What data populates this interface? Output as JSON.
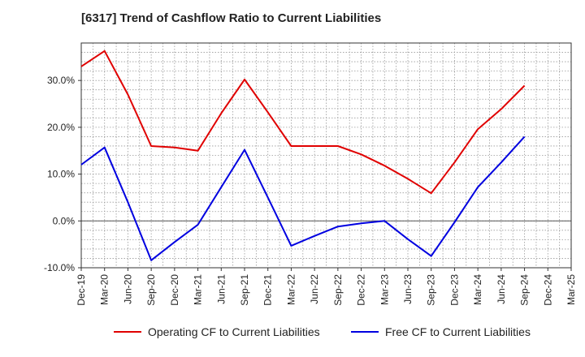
{
  "chart_data": {
    "type": "line",
    "title": "[6317]  Trend of Cashflow Ratio to Current Liabilities",
    "xlabel": "",
    "ylabel": "",
    "categories": [
      "Dec-19",
      "Mar-20",
      "Jun-20",
      "Sep-20",
      "Dec-20",
      "Mar-21",
      "Jun-21",
      "Sep-21",
      "Dec-21",
      "Mar-22",
      "Jun-22",
      "Sep-22",
      "Dec-22",
      "Mar-23",
      "Jun-23",
      "Sep-23",
      "Dec-23",
      "Mar-24",
      "Jun-24",
      "Sep-24",
      "Dec-24",
      "Mar-25"
    ],
    "ylim": [
      -10,
      38
    ],
    "yticks": [
      -10,
      0,
      10,
      20,
      30
    ],
    "ytick_labels": [
      "-10.0%",
      "0.0%",
      "10.0%",
      "20.0%",
      "30.0%"
    ],
    "grid": true,
    "legend_position": "bottom",
    "series": [
      {
        "name": "Operating CF to Current Liabilities",
        "color": "#e00000",
        "values": [
          33.0,
          36.3,
          27.0,
          16.0,
          15.7,
          15.0,
          23.0,
          30.2,
          23.2,
          16.0,
          16.0,
          16.0,
          14.2,
          11.8,
          9.0,
          5.9,
          12.5,
          19.6,
          23.9,
          28.9,
          null,
          null
        ]
      },
      {
        "name": "Free CF to Current Liabilities",
        "color": "#0000e0",
        "values": [
          12.0,
          15.7,
          4.0,
          -8.4,
          -4.5,
          -0.8,
          7.2,
          15.2,
          5.0,
          -5.3,
          -3.2,
          -1.2,
          -0.5,
          0.0,
          -3.9,
          -7.5,
          -0.3,
          7.2,
          12.5,
          18.0,
          null,
          null
        ]
      }
    ]
  }
}
